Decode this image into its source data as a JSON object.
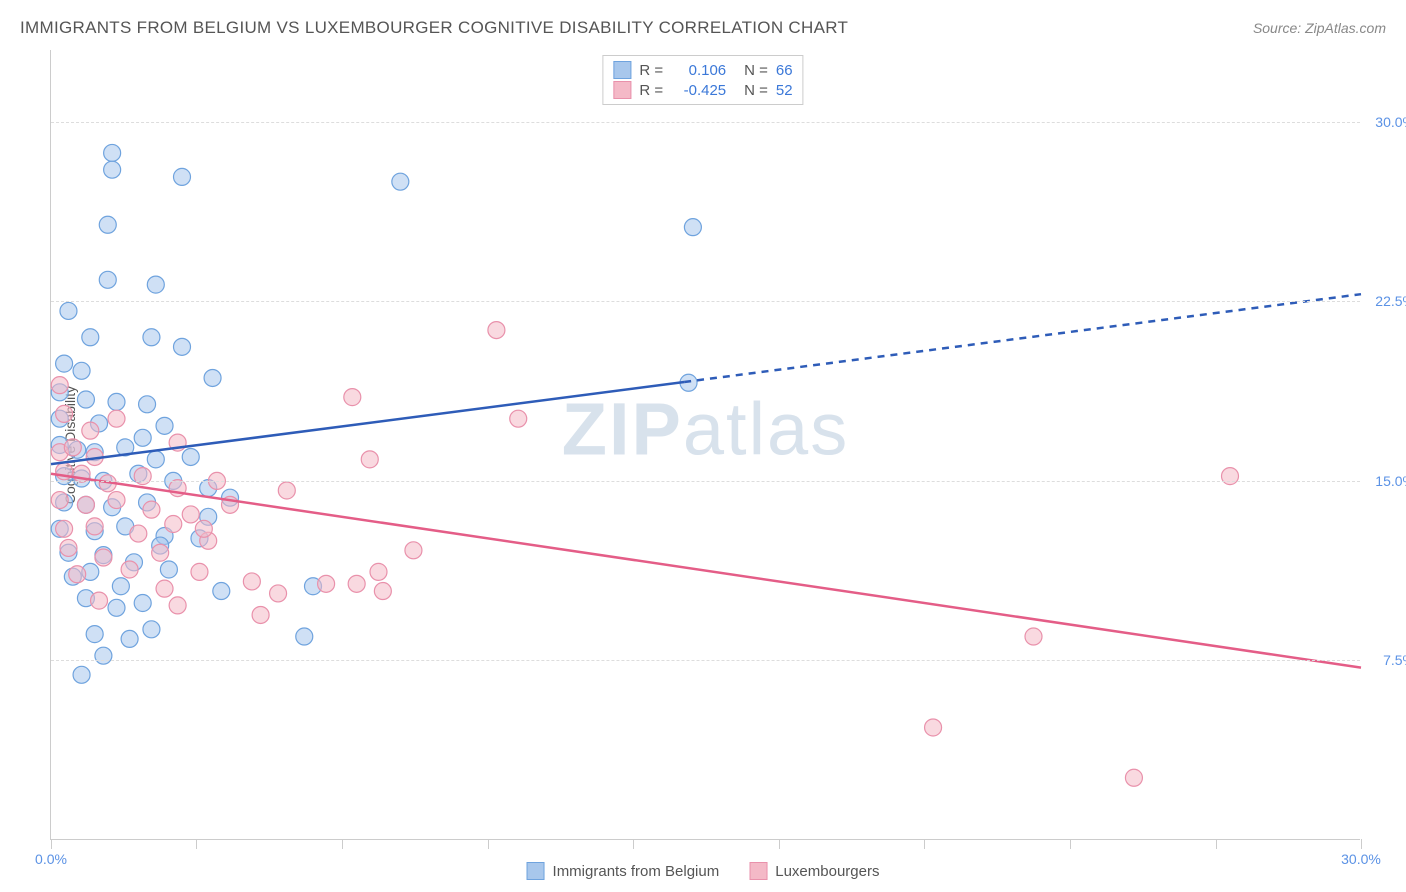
{
  "title": "IMMIGRANTS FROM BELGIUM VS LUXEMBOURGER COGNITIVE DISABILITY CORRELATION CHART",
  "source_prefix": "Source: ",
  "source": "ZipAtlas.com",
  "ylabel": "Cognitive Disability",
  "watermark_bold": "ZIP",
  "watermark_rest": "atlas",
  "chart": {
    "type": "scatter",
    "xlim": [
      0,
      30
    ],
    "ylim": [
      0,
      33
    ],
    "x_tick_labels": {
      "0": "0.0%",
      "30": "30.0%"
    },
    "x_tick_positions": [
      0,
      3.33,
      6.67,
      10,
      13.33,
      16.67,
      20,
      23.33,
      26.67,
      30
    ],
    "y_grid": [
      {
        "y": 7.5,
        "label": "7.5%",
        "color": "#5b92e5"
      },
      {
        "y": 15.0,
        "label": "15.0%",
        "color": "#5b92e5"
      },
      {
        "y": 22.5,
        "label": "22.5%",
        "color": "#5b92e5"
      },
      {
        "y": 30.0,
        "label": "30.0%",
        "color": "#5b92e5"
      }
    ],
    "xlabel_color": "#5b92e5",
    "grid_color": "#dddddd",
    "background_color": "#ffffff",
    "marker_radius": 8.5,
    "marker_opacity": 0.55,
    "series": [
      {
        "name": "Immigrants from Belgium",
        "fill": "#a8c7ec",
        "stroke": "#6fa3de",
        "trend_color": "#2e5cb8",
        "trend_width": 2.5,
        "r_label": "R =",
        "r_value": "0.106",
        "n_label": "N =",
        "n_value": "66",
        "trend": {
          "y_at_x0": 15.7,
          "y_at_x30": 22.8,
          "solid_until_x": 14.5
        },
        "points": [
          [
            1.4,
            28.7
          ],
          [
            1.4,
            28.0
          ],
          [
            3.0,
            27.7
          ],
          [
            1.3,
            25.7
          ],
          [
            8.0,
            27.5
          ],
          [
            1.3,
            23.4
          ],
          [
            2.4,
            23.2
          ],
          [
            0.4,
            22.1
          ],
          [
            0.9,
            21.0
          ],
          [
            2.3,
            21.0
          ],
          [
            0.3,
            19.9
          ],
          [
            0.7,
            19.6
          ],
          [
            3.0,
            20.6
          ],
          [
            3.7,
            19.3
          ],
          [
            0.2,
            18.7
          ],
          [
            0.8,
            18.4
          ],
          [
            1.5,
            18.3
          ],
          [
            2.2,
            18.2
          ],
          [
            0.2,
            17.6
          ],
          [
            1.1,
            17.4
          ],
          [
            2.6,
            17.3
          ],
          [
            2.1,
            16.8
          ],
          [
            0.2,
            16.5
          ],
          [
            0.6,
            16.3
          ],
          [
            1.0,
            16.2
          ],
          [
            1.7,
            16.4
          ],
          [
            2.4,
            15.9
          ],
          [
            3.2,
            16.0
          ],
          [
            0.3,
            15.2
          ],
          [
            0.7,
            15.1
          ],
          [
            1.2,
            15.0
          ],
          [
            2.0,
            15.3
          ],
          [
            2.8,
            15.0
          ],
          [
            3.6,
            14.7
          ],
          [
            0.3,
            14.1
          ],
          [
            0.8,
            14.0
          ],
          [
            1.4,
            13.9
          ],
          [
            2.2,
            14.1
          ],
          [
            3.6,
            13.5
          ],
          [
            4.1,
            14.3
          ],
          [
            0.2,
            13.0
          ],
          [
            1.0,
            12.9
          ],
          [
            1.7,
            13.1
          ],
          [
            2.6,
            12.7
          ],
          [
            3.4,
            12.6
          ],
          [
            0.4,
            12.0
          ],
          [
            1.2,
            11.9
          ],
          [
            1.9,
            11.6
          ],
          [
            2.5,
            12.3
          ],
          [
            0.5,
            11.0
          ],
          [
            0.9,
            11.2
          ],
          [
            1.6,
            10.6
          ],
          [
            2.7,
            11.3
          ],
          [
            3.9,
            10.4
          ],
          [
            0.8,
            10.1
          ],
          [
            1.5,
            9.7
          ],
          [
            2.1,
            9.9
          ],
          [
            6.0,
            10.6
          ],
          [
            1.0,
            8.6
          ],
          [
            1.8,
            8.4
          ],
          [
            2.3,
            8.8
          ],
          [
            5.8,
            8.5
          ],
          [
            1.2,
            7.7
          ],
          [
            0.7,
            6.9
          ],
          [
            14.7,
            25.6
          ],
          [
            14.6,
            19.1
          ]
        ]
      },
      {
        "name": "Luxembourgers",
        "fill": "#f4b9c7",
        "stroke": "#e991ab",
        "trend_color": "#e45d87",
        "trend_width": 2.5,
        "r_label": "R =",
        "r_value": "-0.425",
        "n_label": "N =",
        "n_value": "52",
        "trend": {
          "y_at_x0": 15.3,
          "y_at_x30": 7.2,
          "solid_until_x": 30
        },
        "points": [
          [
            10.2,
            21.3
          ],
          [
            6.9,
            18.5
          ],
          [
            10.7,
            17.6
          ],
          [
            7.3,
            15.9
          ],
          [
            0.2,
            19.0
          ],
          [
            0.3,
            17.8
          ],
          [
            0.9,
            17.1
          ],
          [
            1.5,
            17.6
          ],
          [
            0.2,
            16.2
          ],
          [
            0.5,
            16.4
          ],
          [
            1.0,
            16.0
          ],
          [
            2.9,
            16.6
          ],
          [
            0.3,
            15.4
          ],
          [
            0.7,
            15.3
          ],
          [
            1.3,
            14.9
          ],
          [
            2.1,
            15.2
          ],
          [
            2.9,
            14.7
          ],
          [
            3.8,
            15.0
          ],
          [
            5.4,
            14.6
          ],
          [
            0.2,
            14.2
          ],
          [
            0.8,
            14.0
          ],
          [
            1.5,
            14.2
          ],
          [
            2.3,
            13.8
          ],
          [
            3.2,
            13.6
          ],
          [
            4.1,
            14.0
          ],
          [
            0.3,
            13.0
          ],
          [
            1.0,
            13.1
          ],
          [
            2.0,
            12.8
          ],
          [
            2.8,
            13.2
          ],
          [
            3.6,
            12.5
          ],
          [
            8.3,
            12.1
          ],
          [
            0.4,
            12.2
          ],
          [
            1.2,
            11.8
          ],
          [
            2.5,
            12.0
          ],
          [
            4.6,
            10.8
          ],
          [
            5.2,
            10.3
          ],
          [
            7.5,
            11.2
          ],
          [
            0.6,
            11.1
          ],
          [
            1.8,
            11.3
          ],
          [
            2.6,
            10.5
          ],
          [
            3.4,
            11.2
          ],
          [
            1.1,
            10.0
          ],
          [
            2.9,
            9.8
          ],
          [
            4.8,
            9.4
          ],
          [
            6.3,
            10.7
          ],
          [
            7.0,
            10.7
          ],
          [
            7.6,
            10.4
          ],
          [
            27.0,
            15.2
          ],
          [
            22.5,
            8.5
          ],
          [
            20.2,
            4.7
          ],
          [
            24.8,
            2.6
          ],
          [
            3.5,
            13.0
          ]
        ]
      }
    ]
  }
}
